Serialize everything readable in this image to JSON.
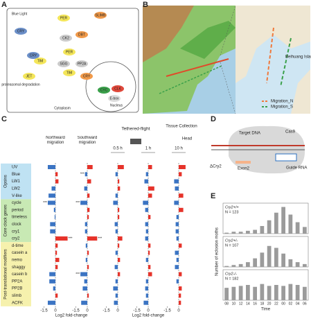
{
  "panel_labels": [
    "A",
    "B",
    "C",
    "D",
    "E"
  ],
  "pathway": {
    "labels": [
      "Blue Light",
      "CRY",
      "CRY",
      "TIM",
      "PER",
      "SLIMB",
      "DBT",
      "CK2",
      "SGG",
      "PP2A",
      "TIM",
      "PER",
      "CRY",
      "JET",
      "proteasomal degradation",
      "Cytoplasm",
      "Nucleus",
      "CYC",
      "CLK",
      "E-box"
    ]
  },
  "map": {
    "labels": [
      "Beihuang Island"
    ],
    "legend": [
      {
        "name": "Migration_N",
        "color": "#f0783a"
      },
      {
        "name": "Migration_S",
        "color": "#3aa04a"
      }
    ]
  },
  "crispr": {
    "labels": [
      "Target DNA",
      "Cas9",
      "Guide RNA",
      "ΔCry2",
      "Exon2"
    ]
  },
  "chart_data": [
    {
      "type": "bar",
      "orientation": "horizontal",
      "groups": [
        {
          "name": "Opsins",
          "color": "#bfe2f3",
          "categories": [
            "UV",
            "Blue",
            "LW1",
            "LW2",
            "V-like"
          ]
        },
        {
          "name": "Core clock genes",
          "color": "#c8e9b4",
          "categories": [
            "cycle",
            "period",
            "timeless",
            "clock",
            "cry1",
            "cry2"
          ]
        },
        {
          "name": "Post-translational modifiers",
          "color": "#f6f1ad",
          "categories": [
            "d-time",
            "casein a",
            "nemo",
            "shaggy",
            "casein b",
            "PP2A",
            "PP2B",
            "slimb",
            "ACFK"
          ]
        }
      ],
      "headers": [
        "Tethered-flight",
        "Tissue Collection",
        "Head"
      ],
      "series": [
        {
          "name": "Northward migration",
          "values": [
            -1.0,
            0.3,
            0.4,
            -0.5,
            -0.9,
            -1.0,
            -0.2,
            -0.1,
            -0.7,
            -0.7,
            1.6,
            0.3,
            0.2,
            0.5,
            0.3,
            -0.8,
            -0.8,
            -0.3,
            0.3,
            -1.0
          ],
          "significance": [
            null,
            null,
            null,
            null,
            null,
            "***",
            null,
            null,
            null,
            null,
            "***",
            null,
            null,
            null,
            null,
            null,
            null,
            null,
            null,
            null
          ]
        },
        {
          "name": "Southward migration",
          "values": [
            0.7,
            -0.3,
            0.5,
            -0.4,
            0.3,
            -0.9,
            0.3,
            0.2,
            -0.3,
            -0.3,
            1.3,
            -0.2,
            0.2,
            -0.2,
            0.2,
            -0.9,
            -0.4,
            -0.6,
            0.2,
            -0.8
          ],
          "significance": [
            null,
            "***",
            null,
            null,
            null,
            "***",
            null,
            null,
            null,
            null,
            "***",
            null,
            null,
            null,
            null,
            "***",
            null,
            null,
            null,
            null
          ]
        },
        {
          "name": "0.5 h",
          "values": [
            0.8,
            -0.3,
            0.2,
            0.3,
            -0.3,
            -0.6,
            0.2,
            0.2,
            -0.4,
            -0.3,
            0.6,
            0.2,
            -0.3,
            0.3,
            -0.4,
            0.3,
            -0.3,
            -0.6,
            -0.3,
            -0.5
          ]
        },
        {
          "name": "1 h",
          "values": [
            0.5,
            -0.3,
            -0.5,
            0.8,
            0.5,
            -0.7,
            -0.4,
            0.3,
            -0.4,
            -0.3,
            -0.4,
            0.3,
            0.2,
            -0.3,
            0.3,
            0.5,
            -0.3,
            -0.4,
            -0.3,
            -0.6
          ]
        },
        {
          "name": "10 h",
          "values": [
            0.9,
            0.4,
            -0.6,
            -0.5,
            0.6,
            -0.6,
            0.6,
            -0.3,
            -0.4,
            -0.4,
            -0.3,
            0.4,
            -0.5,
            -0.3,
            -0.5,
            0.4,
            -0.3,
            0.4,
            0.3,
            0.3
          ]
        }
      ],
      "colors": {
        "positive": "#e6332a",
        "negative": "#3b74c3"
      },
      "xlabel": "Log2 fold-change",
      "xlim": [
        -2,
        2
      ],
      "xticks": [
        -1.5,
        0
      ]
    },
    {
      "type": "bar",
      "title": "Cry2+/+",
      "annotation": "N = 123",
      "categories": [
        "08",
        "10",
        "12",
        "14",
        "16",
        "18",
        "20",
        "22",
        "00",
        "02",
        "04",
        "06"
      ],
      "values": [
        1,
        2,
        2,
        3,
        4,
        8,
        14,
        22,
        28,
        20,
        12,
        7
      ],
      "color": "#9b9b9b",
      "ylim": [
        0,
        32
      ]
    },
    {
      "type": "bar",
      "title": "Cry2+/-",
      "annotation": "N = 107",
      "categories": [
        "08",
        "10",
        "12",
        "14",
        "16",
        "18",
        "20",
        "22",
        "00",
        "02",
        "04",
        "06"
      ],
      "values": [
        1,
        2,
        3,
        5,
        9,
        15,
        22,
        20,
        14,
        8,
        5,
        3
      ],
      "color": "#9b9b9b",
      "ylim": [
        0,
        32
      ],
      "ylabel": "Number of eclosion moths"
    },
    {
      "type": "bar",
      "title": "Cry2-/-",
      "annotation": "N = 182",
      "categories": [
        "08",
        "10",
        "12",
        "14",
        "16",
        "18",
        "20",
        "22",
        "00",
        "02",
        "04",
        "06"
      ],
      "values": [
        13,
        14,
        15,
        16,
        14,
        17,
        15,
        16,
        15,
        17,
        16,
        14
      ],
      "color": "#9b9b9b",
      "ylim": [
        0,
        32
      ],
      "xlabel": "Time"
    }
  ]
}
